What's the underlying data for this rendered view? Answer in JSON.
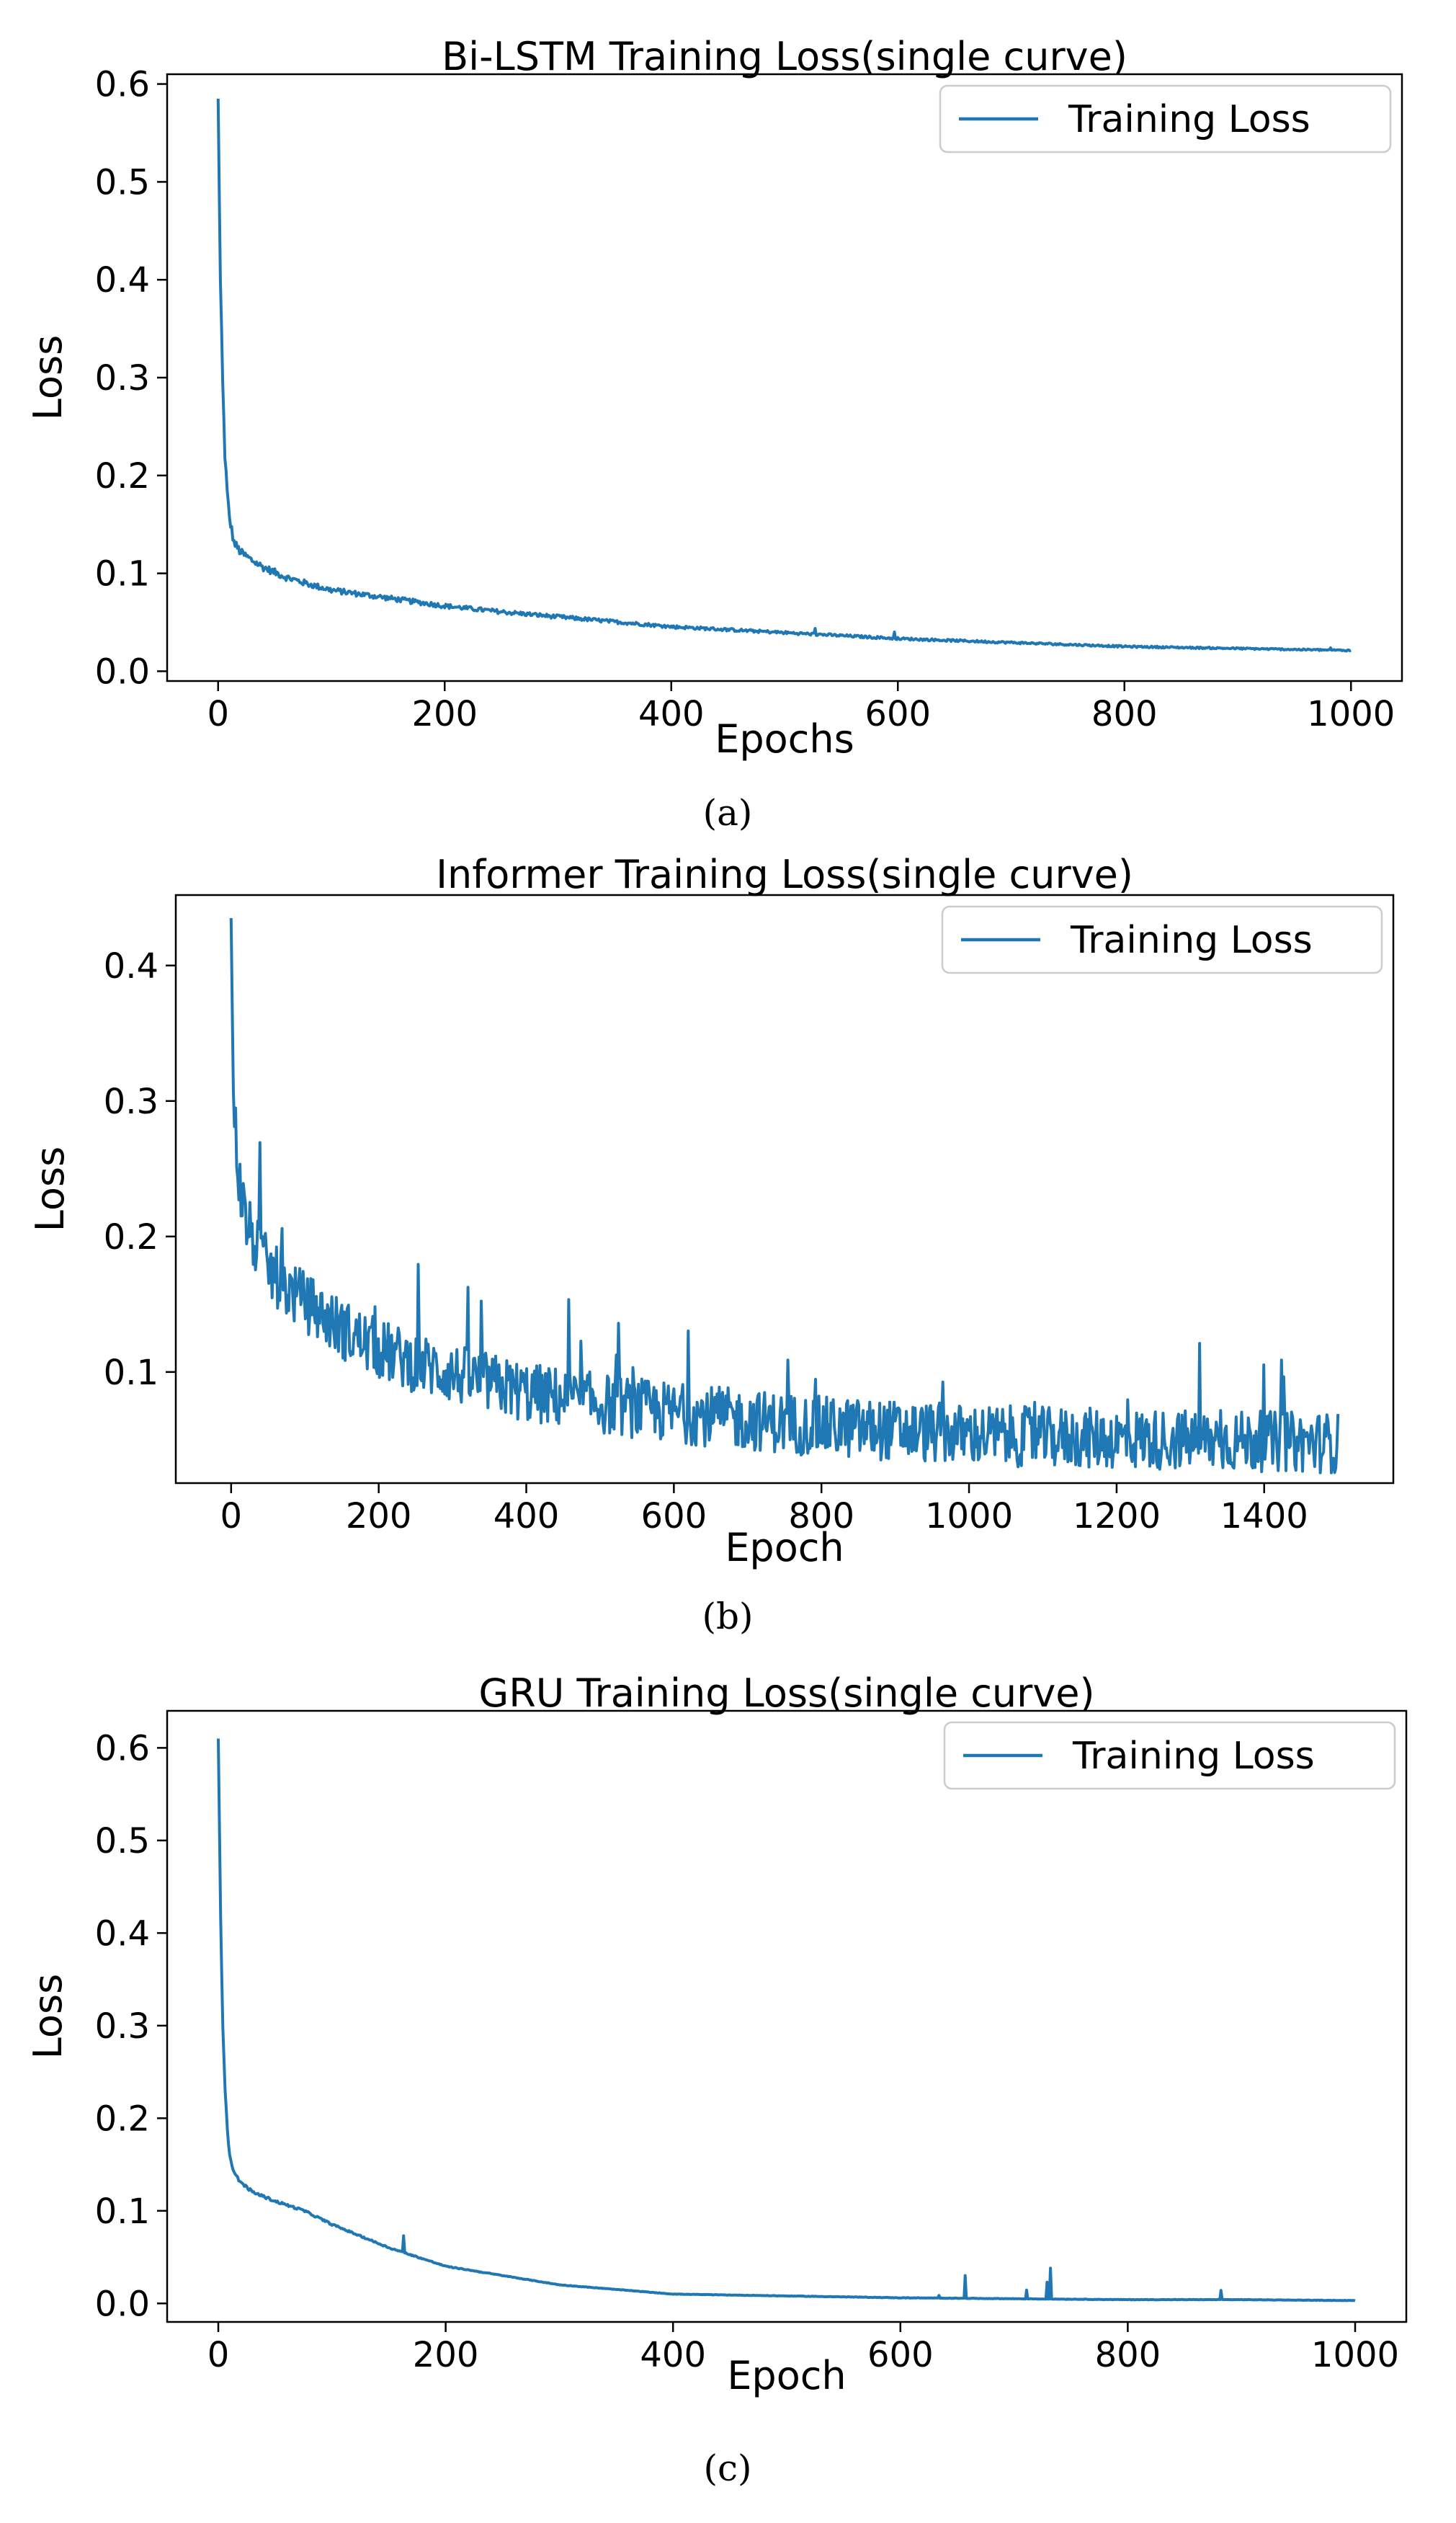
{
  "chart_data": [
    {
      "type": "line",
      "title": "Bi-LSTM Training Loss(single curve)",
      "xlabel": "Epochs",
      "ylabel": "Loss",
      "caption": "(a)",
      "xlim": [
        -45,
        1045
      ],
      "ylim": [
        -0.01,
        0.61
      ],
      "xticks": [
        0,
        200,
        400,
        600,
        800,
        1000
      ],
      "xtick_labels": [
        "0",
        "200",
        "400",
        "600",
        "800",
        "1000"
      ],
      "yticks": [
        0.0,
        0.1,
        0.2,
        0.3,
        0.4,
        0.5,
        0.6
      ],
      "ytick_labels": [
        "0.0",
        "0.1",
        "0.2",
        "0.3",
        "0.4",
        "0.5",
        "0.6"
      ],
      "legend": {
        "position": "top-right",
        "entries": [
          "Training Loss"
        ]
      },
      "series": [
        {
          "name": "Training Loss",
          "color": "#1f77b4",
          "x": [
            0,
            2,
            4,
            6,
            8,
            10,
            14,
            20,
            30,
            40,
            50,
            60,
            80,
            100,
            150,
            200,
            250,
            300,
            350,
            400,
            450,
            500,
            550,
            600,
            650,
            700,
            750,
            800,
            850,
            900,
            950,
            1000
          ],
          "y": [
            0.585,
            0.4,
            0.29,
            0.22,
            0.18,
            0.155,
            0.13,
            0.12,
            0.112,
            0.105,
            0.1,
            0.095,
            0.088,
            0.082,
            0.074,
            0.066,
            0.06,
            0.055,
            0.05,
            0.045,
            0.042,
            0.039,
            0.036,
            0.033,
            0.031,
            0.029,
            0.027,
            0.025,
            0.024,
            0.023,
            0.022,
            0.021
          ]
        }
      ]
    },
    {
      "type": "line",
      "title": "Informer Training Loss(single curve)",
      "xlabel": "Epoch",
      "ylabel": "Loss",
      "caption": "(b)",
      "xlim": [
        -75,
        1575
      ],
      "ylim": [
        0.018,
        0.452
      ],
      "xticks": [
        0,
        200,
        400,
        600,
        800,
        1000,
        1200,
        1400
      ],
      "xtick_labels": [
        "0",
        "200",
        "400",
        "600",
        "800",
        "1000",
        "1200",
        "1400"
      ],
      "yticks": [
        0.1,
        0.2,
        0.3,
        0.4
      ],
      "ytick_labels": [
        "0.1",
        "0.2",
        "0.3",
        "0.4"
      ],
      "legend": {
        "position": "top-right",
        "entries": [
          "Training Loss"
        ]
      },
      "series": [
        {
          "name": "Training Loss",
          "color": "#1f77b4",
          "x": [
            0,
            3,
            6,
            10,
            15,
            20,
            30,
            50,
            75,
            100,
            150,
            200,
            250,
            300,
            350,
            400,
            500,
            600,
            700,
            800,
            900,
            1000,
            1100,
            1200,
            1300,
            1400,
            1500
          ],
          "y": [
            0.435,
            0.3,
            0.27,
            0.24,
            0.22,
            0.205,
            0.19,
            0.17,
            0.155,
            0.145,
            0.125,
            0.11,
            0.1,
            0.092,
            0.085,
            0.078,
            0.07,
            0.063,
            0.058,
            0.053,
            0.05,
            0.047,
            0.045,
            0.044,
            0.043,
            0.042,
            0.041
          ]
        }
      ]
    },
    {
      "type": "line",
      "title": "GRU Training Loss(single curve)",
      "xlabel": "Epoch",
      "ylabel": "Loss",
      "caption": "(c)",
      "xlim": [
        -45,
        1045
      ],
      "ylim": [
        -0.02,
        0.64
      ],
      "xticks": [
        0,
        200,
        400,
        600,
        800,
        1000
      ],
      "xtick_labels": [
        "0",
        "200",
        "400",
        "600",
        "800",
        "1000"
      ],
      "yticks": [
        0.0,
        0.1,
        0.2,
        0.3,
        0.4,
        0.5,
        0.6
      ],
      "ytick_labels": [
        "0.0",
        "0.1",
        "0.2",
        "0.3",
        "0.4",
        "0.5",
        "0.6"
      ],
      "legend": {
        "position": "top-right",
        "entries": [
          "Training Loss"
        ]
      },
      "series": [
        {
          "name": "Training Loss",
          "color": "#1f77b4",
          "x": [
            0,
            2,
            4,
            6,
            8,
            10,
            14,
            20,
            30,
            50,
            75,
            100,
            150,
            200,
            250,
            300,
            350,
            400,
            450,
            500,
            550,
            600,
            700,
            800,
            900,
            1000
          ],
          "y": [
            0.61,
            0.42,
            0.3,
            0.23,
            0.185,
            0.16,
            0.14,
            0.13,
            0.12,
            0.11,
            0.1,
            0.085,
            0.06,
            0.04,
            0.03,
            0.02,
            0.015,
            0.01,
            0.009,
            0.008,
            0.007,
            0.006,
            0.005,
            0.004,
            0.004,
            0.003
          ]
        }
      ]
    }
  ]
}
